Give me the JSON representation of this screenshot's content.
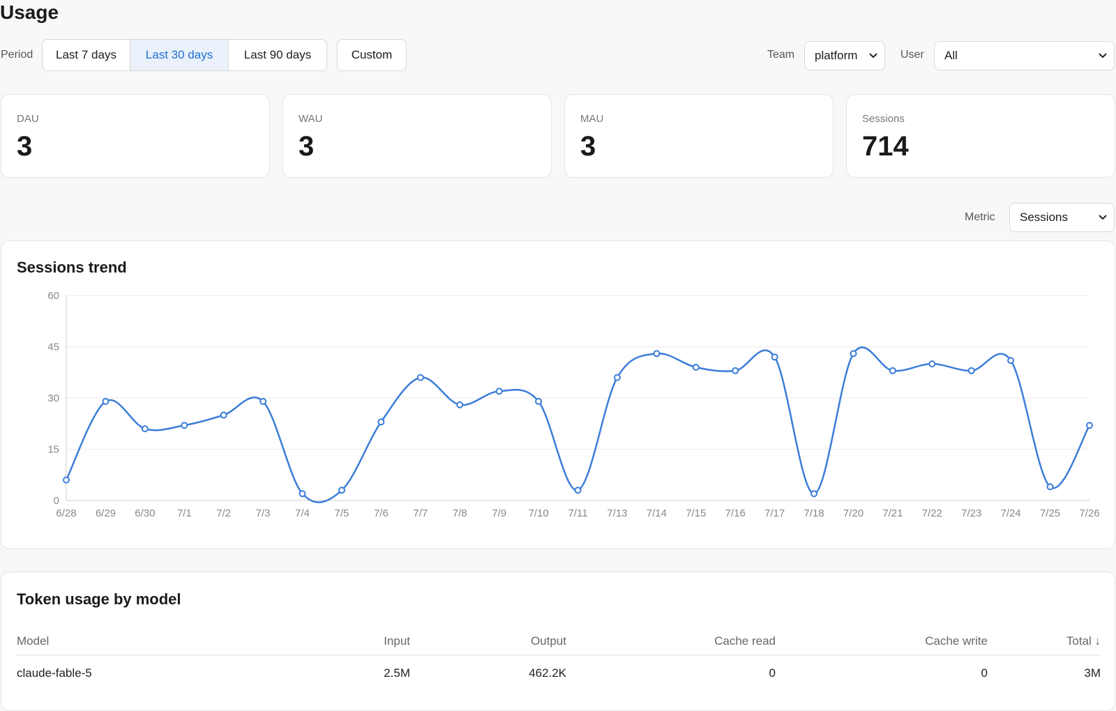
{
  "page": {
    "title": "Usage"
  },
  "filters": {
    "period_label": "Period",
    "periods": [
      "Last 7 days",
      "Last 30 days",
      "Last 90 days"
    ],
    "active_period": "Last 30 days",
    "custom_label": "Custom",
    "team_label": "Team",
    "team_value": "platform",
    "user_label": "User",
    "user_value": "All"
  },
  "stats": [
    {
      "label": "DAU",
      "value": "3"
    },
    {
      "label": "WAU",
      "value": "3"
    },
    {
      "label": "MAU",
      "value": "3"
    },
    {
      "label": "Sessions",
      "value": "714"
    }
  ],
  "metric": {
    "label": "Metric",
    "value": "Sessions"
  },
  "trend": {
    "title": "Sessions trend"
  },
  "chart_data": {
    "type": "line",
    "title": "Sessions trend",
    "x": [
      "6/28",
      "6/29",
      "6/30",
      "7/1",
      "7/2",
      "7/3",
      "7/4",
      "7/5",
      "7/6",
      "7/7",
      "7/8",
      "7/9",
      "7/10",
      "7/11",
      "7/13",
      "7/14",
      "7/15",
      "7/16",
      "7/17",
      "7/18",
      "7/20",
      "7/21",
      "7/22",
      "7/23",
      "7/24",
      "7/25",
      "7/26"
    ],
    "series": [
      {
        "values": [
          6,
          29,
          21,
          22,
          25,
          29,
          2,
          3,
          23,
          36,
          28,
          32,
          29,
          3,
          36,
          43,
          39,
          38,
          42,
          2,
          43,
          38,
          40,
          38,
          41,
          4,
          22
        ]
      }
    ],
    "ylim": [
      0,
      60
    ],
    "yticks": [
      0,
      15,
      30,
      45,
      60
    ],
    "grid": true,
    "color": "#3b7dd8"
  },
  "tokens": {
    "title": "Token usage by model",
    "columns": [
      "Model",
      "Input",
      "Output",
      "Cache read",
      "Cache write",
      "Total ↓"
    ],
    "rows": [
      [
        "claude-fable-5",
        "2.5M",
        "462.2K",
        "0",
        "0",
        "3M"
      ]
    ]
  }
}
